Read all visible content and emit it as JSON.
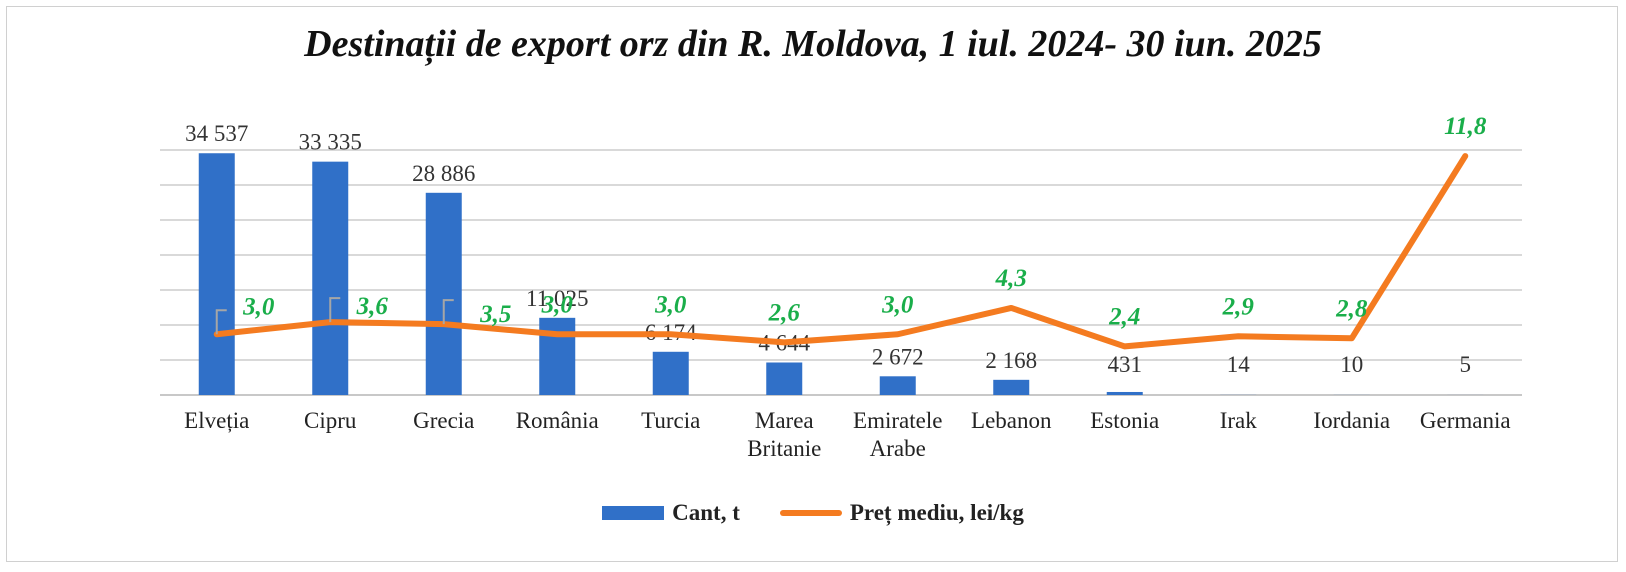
{
  "chart_data": {
    "type": "bar",
    "title": "Destinații de export orz din R. Moldova, 1 iul. 2024- 30 iun. 2025",
    "categories": [
      "Elveția",
      "Cipru",
      "Grecia",
      "România",
      "Turcia",
      "Marea Britanie",
      "Emiratele Arabe",
      "Lebanon",
      "Estonia",
      "Irak",
      "Iordania",
      "Germania"
    ],
    "category_lines": [
      [
        "Elveția"
      ],
      [
        "Cipru"
      ],
      [
        "Grecia"
      ],
      [
        "România"
      ],
      [
        "Turcia"
      ],
      [
        "Marea",
        "Britanie"
      ],
      [
        "Emiratele",
        "Arabe"
      ],
      [
        "Lebanon"
      ],
      [
        "Estonia"
      ],
      [
        "Irak"
      ],
      [
        "Iordania"
      ],
      [
        "Germania"
      ]
    ],
    "series": [
      {
        "name": "Cant, t",
        "type": "bar",
        "color": "#3070c8",
        "values": [
          34537,
          33335,
          28886,
          11025,
          6174,
          4644,
          2672,
          2168,
          431,
          14,
          10,
          5
        ],
        "labels": [
          "34 537",
          "33 335",
          "28 886",
          "11 025",
          "6 174",
          "4 644",
          "2 672",
          "2 168",
          "431",
          "14",
          "10",
          "5"
        ]
      },
      {
        "name": "Preț mediu, lei/kg",
        "type": "line",
        "color": "#f47b20",
        "values": [
          3.0,
          3.6,
          3.5,
          3.0,
          3.0,
          2.6,
          3.0,
          4.3,
          2.4,
          2.9,
          2.8,
          11.8
        ],
        "labels": [
          "3,0",
          "3,6",
          "3,5",
          "3,0",
          "3,0",
          "2,6",
          "3,0",
          "4,3",
          "2,4",
          "2,9",
          "2,8",
          "11,8"
        ]
      }
    ],
    "bar_ylim": [
      0,
      35000
    ],
    "line_ylim": [
      0,
      12.2
    ],
    "grid": true,
    "legend_position": "bottom"
  }
}
